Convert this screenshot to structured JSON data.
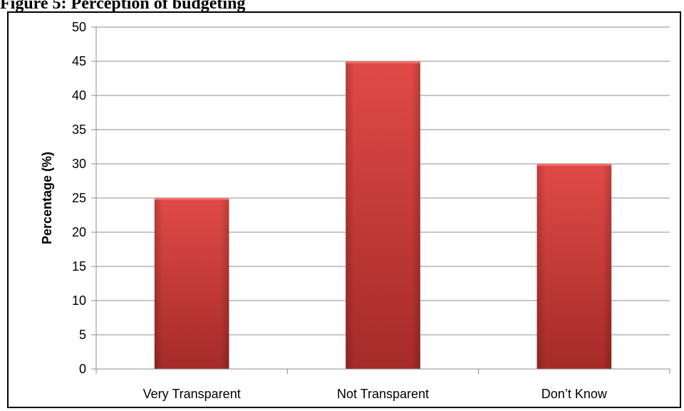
{
  "caption": "Figure 5: Perception of budgeting",
  "chart_data": {
    "type": "bar",
    "title": "",
    "xlabel": "",
    "ylabel": "Percentage (%)",
    "categories": [
      "Very Transparent",
      "Not Transparent",
      "Don’t Know"
    ],
    "values": [
      25,
      45,
      30
    ],
    "ylim": [
      0,
      50
    ],
    "yticks": [
      0,
      5,
      10,
      15,
      20,
      25,
      30,
      35,
      40,
      45,
      50
    ],
    "grid": true,
    "legend": "none",
    "colors": {
      "bar": "#d9403d",
      "bar_dark": "#a52b29",
      "grid": "#8c8c8c"
    }
  }
}
